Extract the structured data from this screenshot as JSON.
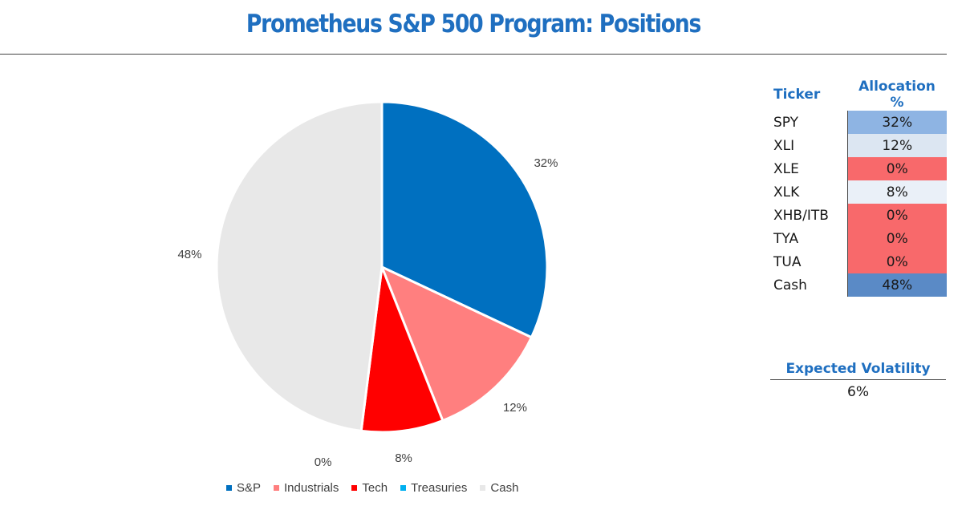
{
  "title": "Prometheus S&P 500 Program: Positions",
  "chart_data": {
    "type": "pie",
    "title": "Prometheus S&P 500 Program: Positions",
    "categories": [
      "S&P",
      "Industrials",
      "Tech",
      "Treasuries",
      "Cash"
    ],
    "values": [
      32,
      12,
      8,
      0,
      48
    ],
    "labels": [
      "32%",
      "12%",
      "8%",
      "0%",
      "48%"
    ],
    "colors": [
      "#0070c0",
      "#ff7f7f",
      "#ff0000",
      "#00b0f0",
      "#e8e8e8"
    ],
    "legend_position": "bottom"
  },
  "table": {
    "headers": {
      "ticker": "Ticker",
      "allocation": "Allocation %"
    },
    "rows": [
      {
        "ticker": "SPY",
        "allocation": "32%",
        "color": "#8eb4e3"
      },
      {
        "ticker": "XLI",
        "allocation": "12%",
        "color": "#dce6f2"
      },
      {
        "ticker": "XLE",
        "allocation": "0%",
        "color": "#f8696b"
      },
      {
        "ticker": "XLK",
        "allocation": "8%",
        "color": "#eaf0f8"
      },
      {
        "ticker": "XHB/ITB",
        "allocation": "0%",
        "color": "#f8696b"
      },
      {
        "ticker": "TYA",
        "allocation": "0%",
        "color": "#f8696b"
      },
      {
        "ticker": "TUA",
        "allocation": "0%",
        "color": "#f8696b"
      },
      {
        "ticker": "Cash",
        "allocation": "48%",
        "color": "#5a8ac6"
      }
    ]
  },
  "volatility": {
    "label": "Expected Volatility",
    "value": "6%"
  }
}
